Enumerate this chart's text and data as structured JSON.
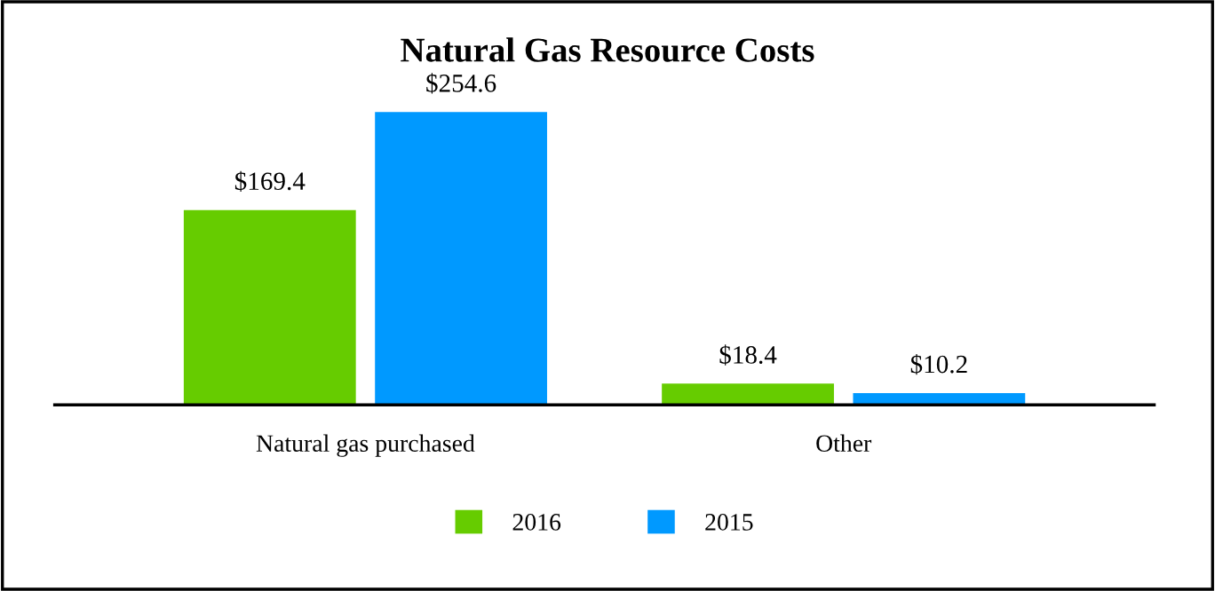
{
  "chart_data": {
    "type": "bar",
    "title": "Natural Gas Resource Costs",
    "categories": [
      "Natural gas purchased",
      "Other"
    ],
    "series": [
      {
        "name": "2016",
        "color": "#66cc00",
        "values": [
          169.4,
          18.4
        ],
        "value_labels": [
          "$169.4",
          "$18.4"
        ]
      },
      {
        "name": "2015",
        "color": "#0099ff",
        "values": [
          254.6,
          10.2
        ],
        "value_labels": [
          "$254.6",
          "$10.2"
        ]
      }
    ],
    "legend": "bottom",
    "tick_labels": "x",
    "grid": false
  }
}
